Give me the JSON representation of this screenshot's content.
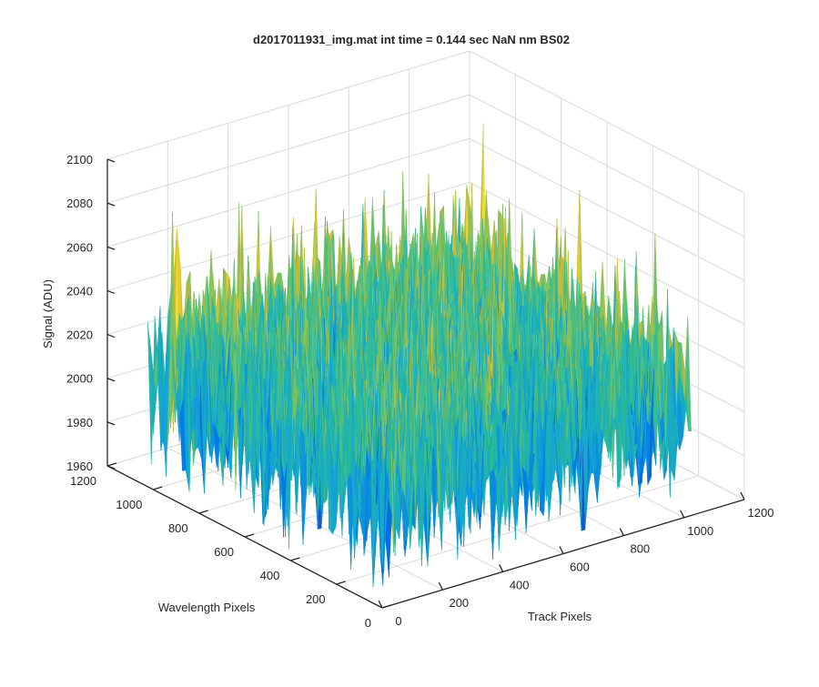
{
  "chart_data": {
    "type": "surface",
    "title": "d2017011931_img.mat int time = 0.144 sec  NaN nm BS02",
    "xlabel": "Track Pixels",
    "ylabel": "Wavelength Pixels",
    "zlabel": "Signal (ADU)",
    "xlim": [
      0,
      1200
    ],
    "ylim": [
      0,
      1200
    ],
    "zlim": [
      1960,
      2100
    ],
    "x_ticks": [
      "0",
      "200",
      "400",
      "600",
      "800",
      "1000",
      "1200"
    ],
    "y_ticks": [
      "0",
      "200",
      "400",
      "600",
      "800",
      "1000",
      "1200"
    ],
    "z_ticks": [
      "1960",
      "1980",
      "2000",
      "2020",
      "2040",
      "2060",
      "2080",
      "2100"
    ],
    "grid": true,
    "colormap": "parula",
    "surface_summary": {
      "mean_signal": 2015,
      "noise_amplitude": 20,
      "min_signal": 1965,
      "max_signal": 2090,
      "data_extent_x": [
        0,
        1024
      ],
      "data_extent_y": [
        0,
        1024
      ]
    }
  },
  "colors": {
    "background": "#ffffff",
    "axis": "#262626",
    "grid": "#d9d9d9",
    "colormap_stops": [
      "#3e26a8",
      "#0072e8",
      "#12a4d6",
      "#28bb9c",
      "#80c35c",
      "#d1bb3b",
      "#fade2b"
    ]
  }
}
